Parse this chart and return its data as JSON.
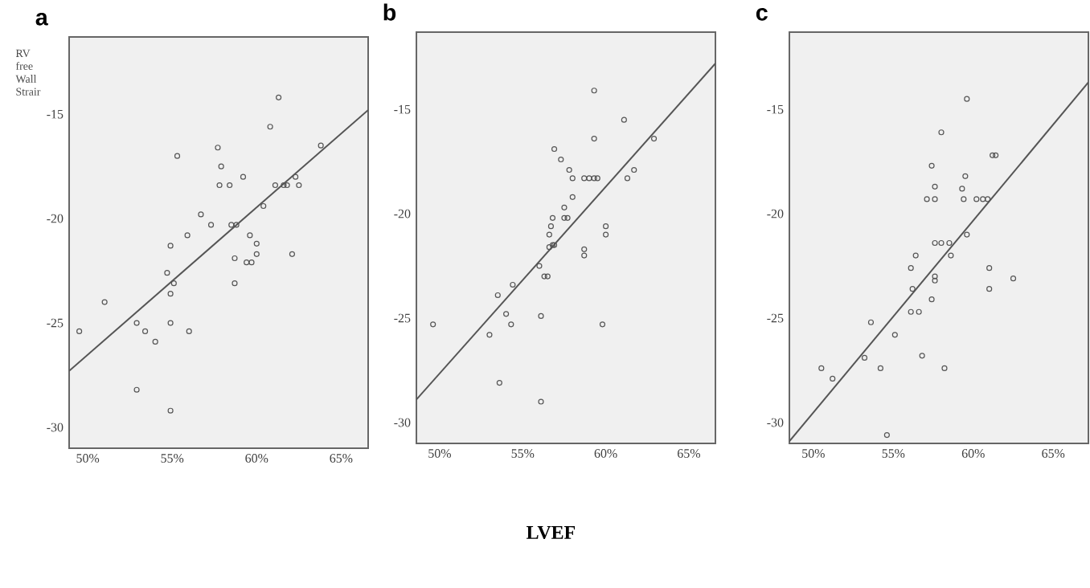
{
  "chart_data": [
    {
      "type": "scatter",
      "title": "a",
      "ylabel": "RV free Wall Strair",
      "xlim": [
        48.9,
        66.6
      ],
      "ylim": [
        -31,
        -11.3
      ],
      "xticks": [
        {
          "value": 50,
          "label": "50%"
        },
        {
          "value": 55,
          "label": "55%"
        },
        {
          "value": 60,
          "label": "60%"
        },
        {
          "value": 65,
          "label": "65%"
        }
      ],
      "yticks": [
        -15,
        -20,
        -25,
        -30
      ],
      "series": [
        {
          "marker": "circle",
          "color": "#555555",
          "x": [
            49.5,
            51.0,
            52.9,
            52.9,
            53.4,
            54.0,
            54.7,
            54.9,
            54.9,
            54.9,
            54.9,
            55.1,
            55.3,
            55.9,
            56.0,
            56.7,
            57.3,
            57.7,
            57.9,
            57.8,
            58.4,
            58.5,
            58.8,
            58.7,
            58.7,
            59.2,
            59.6,
            59.4,
            59.7,
            60.0,
            60.0,
            60.4,
            60.8,
            61.1,
            61.3,
            61.6,
            61.8,
            62.1,
            62.3,
            62.5,
            63.8
          ],
          "values": [
            -25.4,
            -24.0,
            -25.0,
            -28.2,
            -25.4,
            -25.9,
            -22.6,
            -23.6,
            -21.3,
            -25.0,
            -29.2,
            -23.1,
            -17.0,
            -20.8,
            -25.4,
            -19.8,
            -20.3,
            -16.6,
            -17.5,
            -18.4,
            -18.4,
            -20.3,
            -20.3,
            -21.9,
            -23.1,
            -18.0,
            -20.8,
            -22.1,
            -22.1,
            -21.2,
            -21.7,
            -19.4,
            -15.6,
            -18.4,
            -14.2,
            -18.4,
            -18.4,
            -21.7,
            -18.0,
            -18.4,
            -16.5
          ]
        },
        {
          "type": "line",
          "color": "#555555",
          "x": [
            48.9,
            66.6
          ],
          "values": [
            -27.3,
            -14.8
          ]
        }
      ]
    },
    {
      "type": "scatter",
      "title": "b",
      "xlabel": "LVEF",
      "xlim": [
        48.6,
        66.6
      ],
      "ylim": [
        -31,
        -11.3
      ],
      "xticks": [
        {
          "value": 50,
          "label": "50%"
        },
        {
          "value": 55,
          "label": "55%"
        },
        {
          "value": 60,
          "label": "60%"
        },
        {
          "value": 65,
          "label": "65%"
        }
      ],
      "yticks": [
        -15,
        -20,
        -25,
        -30
      ],
      "series": [
        {
          "marker": "circle",
          "color": "#555555",
          "x": [
            49.6,
            53.0,
            53.5,
            53.6,
            54.0,
            54.3,
            54.4,
            56.0,
            56.1,
            56.1,
            56.3,
            56.5,
            56.6,
            56.6,
            56.7,
            56.8,
            56.8,
            56.9,
            56.9,
            57.3,
            57.5,
            57.5,
            57.7,
            57.8,
            58.0,
            58.0,
            58.7,
            58.7,
            58.7,
            59.0,
            59.3,
            59.5,
            59.3,
            59.3,
            59.8,
            60.0,
            60.0,
            61.1,
            61.3,
            61.7,
            62.9
          ],
          "values": [
            -25.3,
            -25.8,
            -23.9,
            -28.1,
            -24.8,
            -25.3,
            -23.4,
            -22.5,
            -24.9,
            -29.0,
            -23.0,
            -23.0,
            -21.6,
            -21.0,
            -20.6,
            -20.2,
            -21.5,
            -21.5,
            -16.9,
            -17.4,
            -19.7,
            -20.2,
            -20.2,
            -17.9,
            -18.3,
            -19.2,
            -18.3,
            -21.7,
            -22.0,
            -18.3,
            -18.3,
            -18.3,
            -14.1,
            -16.4,
            -25.3,
            -20.6,
            -21.0,
            -15.5,
            -18.3,
            -17.9,
            -16.4
          ]
        },
        {
          "type": "line",
          "color": "#555555",
          "x": [
            48.6,
            66.6
          ],
          "values": [
            -28.9,
            -12.8
          ]
        }
      ]
    },
    {
      "type": "scatter",
      "title": "c",
      "xlim": [
        48.5,
        67.2
      ],
      "ylim": [
        -31,
        -11.3
      ],
      "xticks": [
        {
          "value": 50,
          "label": "50%"
        },
        {
          "value": 55,
          "label": "55%"
        },
        {
          "value": 60,
          "label": "60%"
        },
        {
          "value": 65,
          "label": "65%"
        }
      ],
      "yticks": [
        -15,
        -20,
        -25,
        -30
      ],
      "series": [
        {
          "marker": "circle",
          "color": "#555555",
          "x": [
            50.5,
            51.2,
            53.2,
            53.6,
            54.2,
            55.1,
            56.1,
            56.2,
            56.1,
            56.4,
            56.6,
            56.8,
            57.4,
            57.4,
            57.1,
            57.6,
            57.6,
            57.6,
            57.6,
            57.6,
            58.0,
            58.0,
            58.2,
            58.5,
            58.6,
            59.3,
            59.4,
            59.5,
            59.6,
            59.6,
            60.2,
            60.6,
            60.9,
            61.0,
            61.0,
            61.2,
            61.4,
            62.5,
            54.6
          ],
          "values": [
            -27.4,
            -27.9,
            -26.9,
            -25.2,
            -27.4,
            -25.8,
            -22.6,
            -23.6,
            -24.7,
            -22.0,
            -24.7,
            -26.8,
            -24.1,
            -17.7,
            -19.3,
            -18.7,
            -19.3,
            -23.0,
            -23.2,
            -21.4,
            -21.4,
            -16.1,
            -27.4,
            -21.4,
            -22.0,
            -18.8,
            -19.3,
            -18.2,
            -21.0,
            -14.5,
            -19.3,
            -19.3,
            -19.3,
            -22.6,
            -23.6,
            -17.2,
            -17.2,
            -23.1,
            -30.6
          ]
        },
        {
          "type": "line",
          "color": "#555555",
          "x": [
            48.5,
            67.2
          ],
          "values": [
            -30.9,
            -13.7
          ]
        }
      ]
    }
  ]
}
